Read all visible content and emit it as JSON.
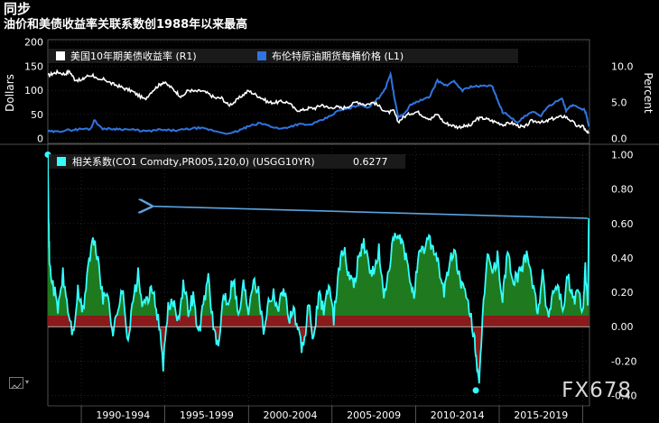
{
  "header": {
    "title": "同步",
    "subtitle": "油价和美债收益率关联系数创1988年以来最高"
  },
  "watermark": "FX678",
  "colors": {
    "background": "#000000",
    "us10y": "#ffffff",
    "brent": "#2f74e0",
    "corr_line": "#33ffff",
    "corr_pos_fill": "#1f7a1f",
    "corr_neg_fill": "#8b1a1a",
    "arrow": "#5ba3e0"
  },
  "icons": {
    "toolbox": "chart-tools-icon",
    "caret": "caret-down-icon"
  },
  "chart_data": [
    {
      "type": "line",
      "title": "同步",
      "legend_position": "top",
      "x_range": [
        1988,
        2020.4
      ],
      "ylabel_left": "Dollars",
      "ylabel_right": "Percent",
      "ylim_left": [
        -10,
        205
      ],
      "ylim_right": [
        -0.67,
        13.67
      ],
      "yticks_left": [
        "200",
        "150",
        "100",
        "50",
        "0"
      ],
      "yticks_right": [
        "10.0",
        "5.0",
        "0.0"
      ],
      "series": [
        {
          "name": "美国10年期美债收益率 (R1)",
          "axis": "right",
          "x": [
            1988.0,
            1988.3,
            1988.6,
            1989.0,
            1989.3,
            1989.6,
            1990.0,
            1990.3,
            1990.7,
            1991.0,
            1991.4,
            1991.8,
            1992.2,
            1992.6,
            1993.0,
            1993.4,
            1993.8,
            1994.2,
            1994.6,
            1994.9,
            1995.3,
            1995.7,
            1996.0,
            1996.4,
            1996.8,
            1997.2,
            1997.6,
            1998.0,
            1998.4,
            1998.8,
            1999.2,
            1999.6,
            2000.0,
            2000.4,
            2000.8,
            2001.2,
            2001.6,
            2002.0,
            2002.4,
            2002.8,
            2003.2,
            2003.6,
            2004.0,
            2004.4,
            2004.8,
            2005.2,
            2005.6,
            2006.0,
            2006.5,
            2007.0,
            2007.5,
            2007.9,
            2008.3,
            2008.7,
            2008.95,
            2009.3,
            2009.7,
            2010.1,
            2010.5,
            2010.9,
            2011.3,
            2011.7,
            2012.1,
            2012.5,
            2012.9,
            2013.3,
            2013.7,
            2014.1,
            2014.5,
            2014.9,
            2015.3,
            2015.7,
            2016.1,
            2016.5,
            2016.9,
            2017.3,
            2017.7,
            2018.1,
            2018.5,
            2018.9,
            2019.3,
            2019.7,
            2020.0,
            2020.2,
            2020.35
          ],
          "values": [
            8.7,
            9.0,
            9.2,
            8.9,
            9.3,
            8.2,
            8.0,
            8.6,
            8.8,
            8.0,
            8.2,
            7.6,
            7.3,
            6.9,
            6.6,
            6.0,
            5.4,
            6.5,
            7.3,
            7.8,
            7.2,
            6.4,
            5.7,
            6.7,
            6.5,
            6.6,
            6.2,
            5.6,
            5.6,
            4.6,
            5.1,
            5.9,
            6.6,
            6.1,
            5.6,
            5.0,
            5.0,
            5.1,
            5.0,
            4.0,
            3.9,
            4.2,
            4.2,
            4.7,
            4.2,
            4.4,
            4.2,
            4.5,
            5.1,
            4.7,
            5.0,
            4.3,
            3.6,
            3.8,
            2.3,
            3.0,
            3.5,
            3.7,
            3.1,
            2.7,
            3.4,
            2.2,
            1.9,
            1.6,
            1.7,
            1.8,
            2.8,
            2.8,
            2.5,
            2.2,
            1.9,
            2.2,
            1.8,
            1.5,
            2.4,
            2.4,
            2.2,
            2.7,
            2.9,
            3.1,
            2.5,
            1.6,
            1.8,
            0.9,
            0.7
          ]
        },
        {
          "name": "布伦特原油期货每桶价格 (L1)",
          "axis": "left",
          "x": [
            1988.0,
            1988.5,
            1989.0,
            1989.5,
            1990.0,
            1990.55,
            1990.8,
            1991.2,
            1991.7,
            1992.2,
            1992.8,
            1993.4,
            1994.0,
            1994.6,
            1995.2,
            1995.8,
            1996.4,
            1997.0,
            1997.6,
            1998.2,
            1998.95,
            1999.5,
            2000.0,
            2000.7,
            2001.3,
            2001.9,
            2002.5,
            2003.0,
            2003.6,
            2004.2,
            2004.8,
            2005.4,
            2006.0,
            2006.6,
            2007.2,
            2007.8,
            2008.2,
            2008.5,
            2008.7,
            2008.95,
            2009.3,
            2009.7,
            2010.2,
            2010.8,
            2011.3,
            2011.8,
            2012.3,
            2012.8,
            2013.3,
            2013.8,
            2014.3,
            2014.6,
            2014.9,
            2015.2,
            2015.6,
            2016.05,
            2016.5,
            2017.0,
            2017.5,
            2018.0,
            2018.75,
            2019.0,
            2019.4,
            2019.9,
            2020.1,
            2020.25,
            2020.35
          ],
          "values": [
            15,
            14,
            17,
            18,
            20,
            20,
            39,
            21,
            20,
            20,
            19,
            17,
            15,
            18,
            17,
            17,
            20,
            22,
            19,
            14,
            10,
            18,
            25,
            32,
            26,
            20,
            25,
            30,
            28,
            35,
            45,
            58,
            62,
            70,
            65,
            85,
            105,
            135,
            90,
            45,
            50,
            70,
            78,
            85,
            120,
            110,
            118,
            100,
            108,
            108,
            110,
            108,
            80,
            55,
            48,
            32,
            45,
            55,
            48,
            68,
            85,
            58,
            70,
            62,
            60,
            45,
            25
          ]
        }
      ]
    },
    {
      "type": "area",
      "legend_position": "top-left",
      "x_range": [
        1988,
        2020.4
      ],
      "ylim": [
        -0.46,
        1.06
      ],
      "yticks": [
        "1.00",
        "0.80",
        "0.60",
        "0.40",
        "0.20",
        "0.00",
        "-0.20",
        "-0.40"
      ],
      "xticks": [
        "1990-1994",
        "1995-1999",
        "2000-2004",
        "2005-2009",
        "2010-2014",
        "2015-2019"
      ],
      "series": [
        {
          "name": "相关系数(CO1 Comdty,PR005,120,0) (USGG10YR)",
          "last_value_label": "0.6277",
          "last_value": 0.6277,
          "peak_marker": {
            "x": 1988.0,
            "y": 1.0
          },
          "trough_marker": {
            "x": 2013.6,
            "y": -0.37
          },
          "annotation_arrow": {
            "from": [
              2020.3,
              0.63
            ],
            "to": [
              1994.2,
              0.7
            ]
          },
          "x": [
            1988.0,
            1988.05,
            1988.1,
            1988.3,
            1988.6,
            1988.9,
            1989.2,
            1989.5,
            1989.8,
            1990.1,
            1990.4,
            1990.7,
            1991.0,
            1991.3,
            1991.6,
            1991.9,
            1992.2,
            1992.5,
            1992.8,
            1993.1,
            1993.4,
            1993.7,
            1994.0,
            1994.3,
            1994.6,
            1994.9,
            1995.2,
            1995.5,
            1995.8,
            1996.1,
            1996.4,
            1996.7,
            1997.0,
            1997.3,
            1997.6,
            1997.9,
            1998.2,
            1998.5,
            1998.8,
            1999.1,
            1999.4,
            1999.7,
            2000.0,
            2000.3,
            2000.6,
            2000.9,
            2001.2,
            2001.5,
            2001.8,
            2002.1,
            2002.4,
            2002.7,
            2003.0,
            2003.3,
            2003.6,
            2003.9,
            2004.2,
            2004.5,
            2004.8,
            2005.1,
            2005.4,
            2005.7,
            2006.0,
            2006.3,
            2006.6,
            2006.9,
            2007.2,
            2007.5,
            2007.8,
            2008.1,
            2008.4,
            2008.7,
            2009.0,
            2009.3,
            2009.6,
            2009.9,
            2010.2,
            2010.5,
            2010.8,
            2011.1,
            2011.4,
            2011.7,
            2012.0,
            2012.3,
            2012.6,
            2012.9,
            2013.2,
            2013.5,
            2013.65,
            2013.8,
            2014.0,
            2014.3,
            2014.6,
            2014.9,
            2015.2,
            2015.5,
            2015.8,
            2016.1,
            2016.4,
            2016.7,
            2017.0,
            2017.3,
            2017.6,
            2017.9,
            2018.2,
            2018.5,
            2018.8,
            2019.1,
            2019.4,
            2019.7,
            2020.0,
            2020.15,
            2020.3,
            2020.36
          ],
          "values": [
            1.0,
            0.6,
            0.35,
            0.25,
            0.1,
            0.3,
            0.1,
            -0.05,
            0.2,
            0.08,
            0.35,
            0.5,
            0.4,
            0.15,
            0.2,
            -0.05,
            0.12,
            0.2,
            -0.08,
            0.15,
            0.3,
            0.1,
            0.18,
            0.2,
            0.05,
            -0.22,
            0.1,
            0.15,
            0.05,
            0.25,
            0.1,
            0.18,
            -0.05,
            0.12,
            0.3,
            0.0,
            -0.15,
            0.2,
            0.15,
            0.3,
            0.05,
            0.25,
            0.1,
            0.3,
            0.2,
            -0.02,
            0.15,
            0.2,
            0.1,
            0.25,
            0.05,
            0.1,
            -0.05,
            -0.15,
            0.15,
            -0.1,
            0.2,
            0.1,
            0.25,
            0.05,
            0.35,
            0.45,
            0.3,
            0.25,
            0.4,
            0.5,
            0.35,
            0.3,
            0.45,
            0.15,
            0.35,
            0.5,
            0.52,
            0.45,
            0.3,
            0.2,
            0.4,
            0.45,
            0.52,
            0.45,
            0.35,
            0.2,
            0.35,
            0.45,
            0.3,
            0.2,
            0.1,
            -0.05,
            -0.2,
            -0.37,
            0.05,
            0.45,
            0.3,
            0.4,
            0.15,
            0.45,
            0.25,
            0.3,
            0.35,
            0.45,
            0.25,
            0.1,
            0.3,
            0.05,
            0.2,
            0.25,
            0.1,
            0.3,
            0.15,
            0.2,
            0.1,
            0.35,
            0.1,
            0.63
          ]
        }
      ]
    }
  ]
}
